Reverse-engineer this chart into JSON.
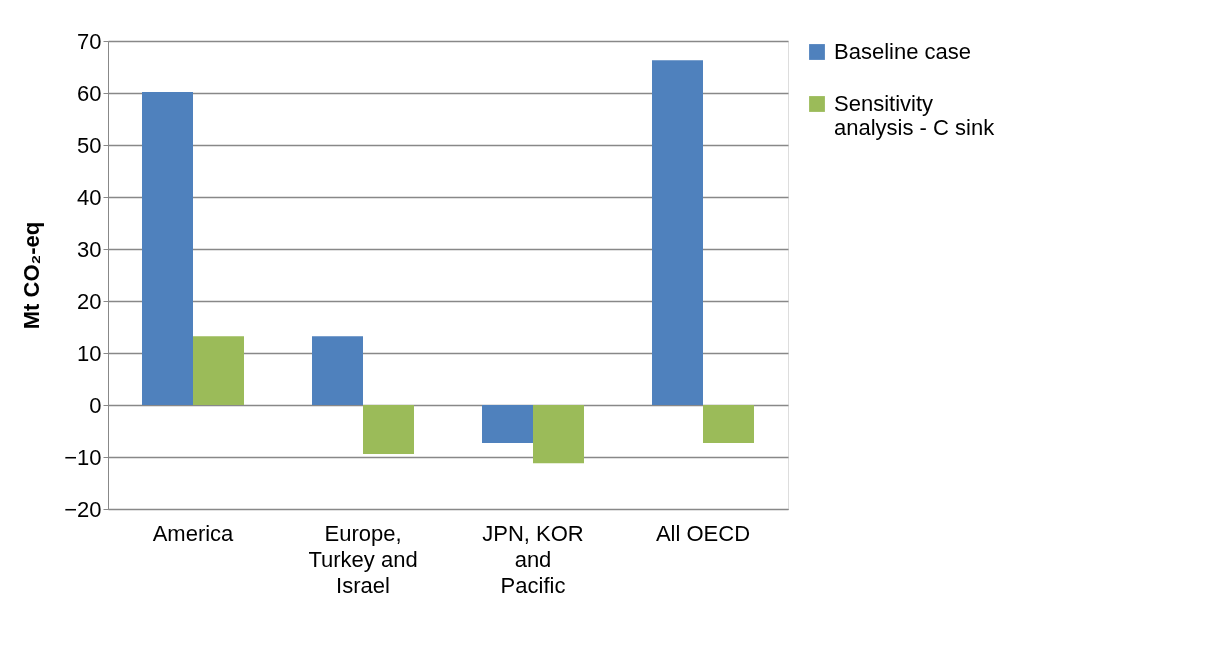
{
  "chart_data": {
    "type": "bar",
    "ylabel": "Mt CO₂-eq",
    "categories": [
      "America",
      "Europe,\nTurkey and\nIsrael",
      "JPN, KOR\nand\nPacific",
      "All OECD"
    ],
    "series": [
      {
        "name": "Baseline case",
        "color": "#4f81bd",
        "values": [
          60.2,
          13.2,
          -7.3,
          66.3
        ]
      },
      {
        "name": "Sensitivity\nanalysis - C sink",
        "color": "#9bbb59",
        "values": [
          13.2,
          -9.4,
          -11.2,
          -7.3
        ]
      }
    ],
    "ylim": [
      -20,
      70
    ],
    "yticks": [
      -20,
      -10,
      0,
      10,
      20,
      30,
      40,
      50,
      60,
      70
    ],
    "grid": "y",
    "legend": "right"
  }
}
